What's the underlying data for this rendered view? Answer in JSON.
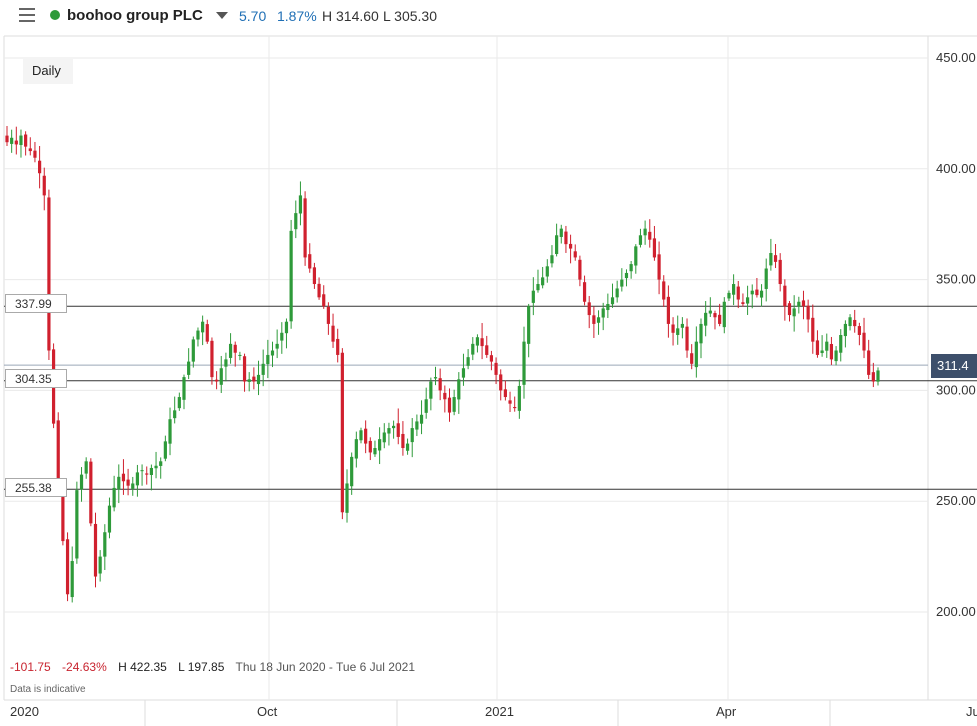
{
  "header": {
    "instrument": "boohoo group PLC",
    "change": "5.70",
    "change_pct": "1.87%",
    "high": "H 314.60",
    "low": "L 305.30"
  },
  "period_button": "Daily",
  "footer": {
    "change": "-101.75",
    "change_pct": "-24.63%",
    "high": "H 422.35",
    "low": "L 197.85",
    "range": "Thu 18 Jun 2020 - Tue 6 Jul 2021",
    "note": "Data is indicative"
  },
  "colors": {
    "up": "#2e9a3a",
    "down": "#d0202e",
    "price_tag": "#3d4f6b",
    "level_line": "#333333"
  },
  "chart_data": {
    "type": "candlestick",
    "y_ticks": [
      "450.00",
      "400.00",
      "350.00",
      "300.00",
      "250.00",
      "200.00"
    ],
    "ylim": [
      190,
      460
    ],
    "x_ticks": [
      "2020",
      "Oct",
      "2021",
      "Apr",
      "Jul"
    ],
    "horizontal_levels": [
      "337.99",
      "304.35",
      "255.38"
    ],
    "last_price": "311.4",
    "series": [
      {
        "name": "",
        "values": [
          412,
          414,
          411,
          415,
          410,
          408,
          405,
          398,
          388,
          318,
          285,
          255,
          232,
          208,
          223,
          255,
          262,
          268,
          240,
          216,
          225,
          236,
          248,
          256,
          261,
          259,
          257,
          258,
          263,
          264,
          262,
          265,
          266,
          268,
          277,
          287,
          291,
          297,
          306,
          313,
          323,
          327,
          331,
          322,
          306,
          304,
          310,
          314,
          321,
          317,
          316,
          304,
          305,
          304,
          307,
          312,
          316,
          318,
          321,
          326,
          331,
          372,
          380,
          388,
          360,
          355,
          348,
          342,
          338,
          330,
          322,
          316,
          245,
          258,
          270,
          278,
          282,
          276,
          272,
          274,
          278,
          281,
          283,
          284,
          279,
          274,
          276,
          283,
          286,
          289,
          296,
          304,
          306,
          300,
          296,
          290,
          297,
          305,
          310,
          315,
          321,
          324,
          320,
          316,
          313,
          307,
          300,
          297,
          294,
          292,
          302,
          322,
          338,
          345,
          348,
          351,
          356,
          361,
          370,
          373,
          366,
          364,
          360,
          350,
          340,
          334,
          330,
          333,
          337,
          339,
          342,
          346,
          350,
          353,
          357,
          365,
          370,
          373,
          368,
          360,
          350,
          341,
          330,
          326,
          328,
          330,
          318,
          312,
          322,
          330,
          335,
          336,
          333,
          330,
          340,
          344,
          348,
          341,
          339,
          342,
          345,
          343,
          345,
          355,
          362,
          358,
          348,
          338,
          334,
          337,
          340,
          338,
          332,
          322,
          316,
          318,
          322,
          314,
          318,
          325,
          330,
          333,
          329,
          325,
          318,
          307,
          304,
          309
        ]
      }
    ]
  }
}
